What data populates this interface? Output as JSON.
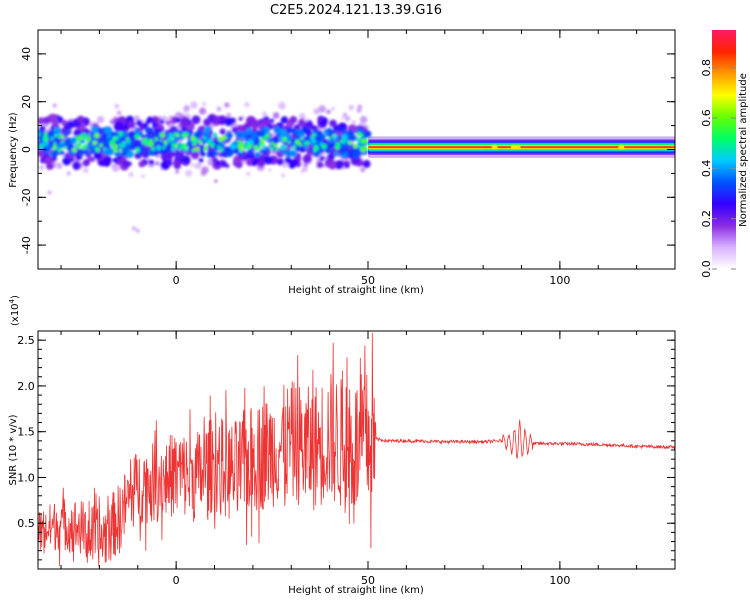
{
  "figure_title": "C2E5.2024.121.13.39.G16",
  "chart_data": [
    {
      "type": "heatmap",
      "title": "C2E5.2024.121.13.39.G16",
      "xlabel": "Height of straight line (km)",
      "ylabel": "Frequency (Hz)",
      "xlim": [
        -36,
        130
      ],
      "ylim": [
        -50,
        50
      ],
      "xticks": [
        0,
        50,
        100
      ],
      "yticks": [
        40,
        20,
        0,
        -20,
        -40
      ],
      "colorbar": {
        "label": "Normalized spectral amplitude",
        "range": [
          0.0,
          0.95
        ],
        "ticks": [
          0.0,
          0.2,
          0.4,
          0.6,
          0.8
        ],
        "colormap": [
          "#ffffff",
          "#d9b3ff",
          "#8a2be2",
          "#3300ff",
          "#0055ff",
          "#00ccff",
          "#00ff66",
          "#66ff00",
          "#ffff00",
          "#ff9900",
          "#ff2200",
          "#ff1a66"
        ]
      },
      "segments": [
        {
          "x_range": [
            -36,
            50
          ],
          "center_freq_hz": 3,
          "spread_hz": [
            -12,
            18
          ],
          "character": "scattered noisy blobs"
        },
        {
          "x_range": [
            50,
            130
          ],
          "center_freq_hz": 1,
          "spread_hz": [
            -3,
            5
          ],
          "character": "steady narrow band, peak amplitude ~0.9"
        }
      ]
    },
    {
      "type": "line",
      "xlabel": "Height of straight line (km)",
      "ylabel": "SNR (10 * v/v)",
      "y_scale_label": "(x10^4)",
      "y_scale_base": "(x10",
      "y_scale_exp": "4",
      "y_scale_close": ")",
      "xlim": [
        -36,
        130
      ],
      "ylim": [
        0.0,
        2.6
      ],
      "xticks": [
        0,
        50,
        100
      ],
      "yticks": [
        0.5,
        1.0,
        1.5,
        2.0,
        2.5
      ],
      "ytick_labels": [
        "0.5",
        "1.0",
        "1.5",
        "2.0",
        "2.5"
      ],
      "color": "#ee3333",
      "series": [
        {
          "x": [
            -36,
            -30,
            -25,
            -20,
            -15,
            -12,
            -10,
            -5,
            0,
            5,
            10,
            15,
            20,
            25,
            30,
            35,
            40,
            45,
            50,
            52,
            55,
            60,
            70,
            80,
            85,
            88,
            90,
            92,
            100,
            110,
            116,
            120,
            130
          ],
          "y": [
            0.4,
            0.5,
            0.45,
            0.3,
            0.55,
            0.8,
            0.9,
            0.95,
            1.05,
            1.0,
            1.15,
            1.05,
            1.2,
            1.3,
            1.4,
            1.3,
            1.45,
            1.3,
            1.4,
            1.42,
            1.4,
            1.4,
            1.39,
            1.39,
            1.4,
            1.38,
            1.4,
            1.37,
            1.37,
            1.36,
            1.35,
            1.34,
            1.33
          ]
        }
      ],
      "annotations": [
        {
          "x_range": [
            -36,
            52
          ],
          "y_range": [
            0.05,
            2.6
          ],
          "note": "highly noisy oscillation"
        },
        {
          "x": 88,
          "y_range": [
            1.1,
            1.7
          ],
          "note": "short disturbance"
        }
      ]
    }
  ]
}
